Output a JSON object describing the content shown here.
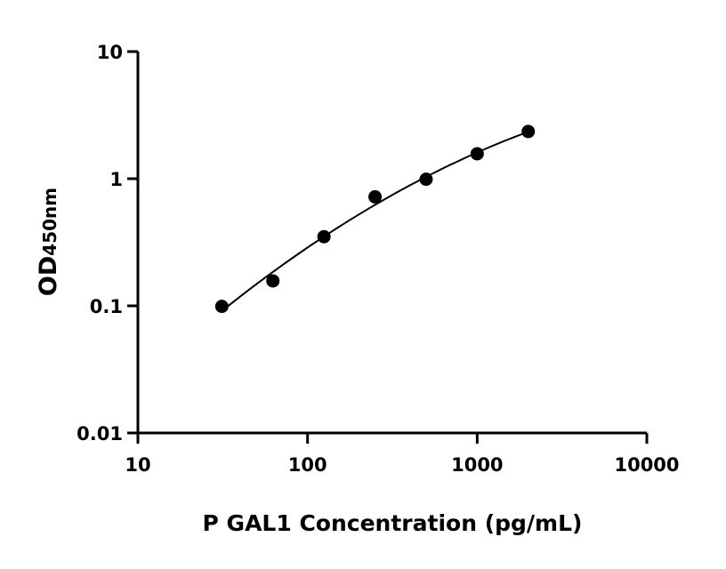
{
  "chart_data": {
    "type": "scatter",
    "title": "",
    "xlabel": "P GAL1 Concentration (pg/mL)",
    "ylabel_main": "OD",
    "ylabel_sub": "450nm",
    "x_scale": "log",
    "y_scale": "log",
    "xlim": [
      10,
      10000
    ],
    "ylim": [
      0.01,
      10
    ],
    "x_ticks": [
      "10",
      "100",
      "1000",
      "10000"
    ],
    "y_ticks": [
      "0.01",
      "0.1",
      "1",
      "10"
    ],
    "grid": false,
    "legend": "none",
    "fit_curve": true,
    "colors": {
      "points": "#000000",
      "curve": "#000000"
    },
    "series": [
      {
        "x": [
          31.25,
          62.5,
          125,
          250,
          500,
          1000,
          2000
        ],
        "y": [
          0.099,
          0.157,
          0.35,
          0.72,
          0.99,
          1.57,
          2.35
        ]
      }
    ]
  }
}
